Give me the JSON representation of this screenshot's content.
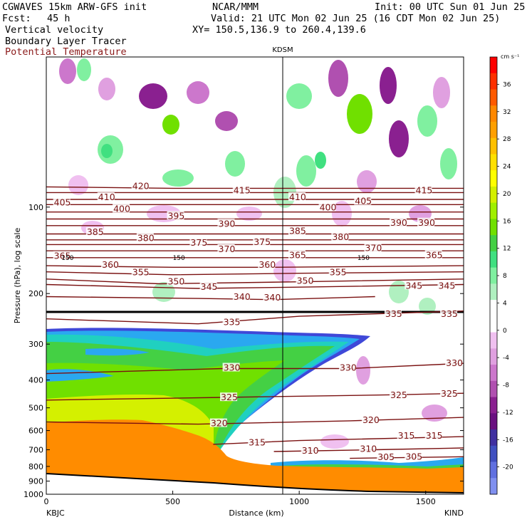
{
  "header": {
    "model": "CGWAVES 15km ARW-GFS init",
    "org": "NCAR/MMM",
    "init": "Init: 00 UTC Sun 01 Jun 25",
    "fcst_label": "Fcst:",
    "fcst_value": "45 h",
    "valid": "Valid: 21 UTC Mon 02 Jun 25 (16 CDT Mon 02 Jun 25)",
    "field1": "Vertical velocity",
    "field2": "Boundary Layer Tracer",
    "field3": "Potential Temperature",
    "xy": "XY= 150.5,136.9 to 260.4,139.6"
  },
  "colors": {
    "theta_contour": "#7a1010",
    "terrain": "#ff8c00",
    "cross_marker_line": "#000000"
  },
  "chart_data": {
    "type": "heatmap",
    "title": "KDSM",
    "xlabel": "Distance (km)",
    "ylabel": "Pressure (hPa), log scale",
    "xlim": [
      0,
      1650
    ],
    "ylim": [
      1000,
      30
    ],
    "yscale": "log",
    "x_ticks": [
      0,
      500,
      1000,
      1500
    ],
    "y_ticks": [
      100,
      200,
      300,
      400,
      500,
      600,
      700,
      800,
      900,
      1000
    ],
    "start_label": "KBJC",
    "end_label": "KIND",
    "marker_station": "KDSM",
    "marker_x": 940,
    "colorbar": {
      "unit": "cm s⁻¹",
      "ticks": [
        36,
        32,
        28,
        24,
        20,
        16,
        12,
        8,
        4,
        0,
        -4,
        -8,
        -12,
        -16,
        -20
      ],
      "colors": [
        "#ff0000",
        "#ff3000",
        "#ff5a00",
        "#ff8800",
        "#ff9f00",
        "#ffc000",
        "#ffe000",
        "#ffff00",
        "#d4f000",
        "#a0f000",
        "#70e000",
        "#44d044",
        "#40e080",
        "#80f0a0",
        "#b0f0c0",
        "#ffffff",
        "#ffffff",
        "#f0c0f0",
        "#e0a0e0",
        "#cc77cc",
        "#b050b0",
        "#8a2090",
        "#6a1080",
        "#4030a0",
        "#4050c0",
        "#6070e0",
        "#8090f0"
      ]
    },
    "theta_contours": [
      {
        "theta": 420,
        "points": [
          [
            0,
            85
          ],
          [
            500,
            86
          ],
          [
            1000,
            86
          ],
          [
            1650,
            86
          ]
        ],
        "labels": [
          [
            340,
            85
          ]
        ]
      },
      {
        "theta": 415,
        "points": [
          [
            0,
            89
          ],
          [
            500,
            89
          ],
          [
            1000,
            89
          ],
          [
            1650,
            89
          ]
        ],
        "labels": [
          [
            740,
            88
          ],
          [
            1460,
            88
          ]
        ]
      },
      {
        "theta": 410,
        "points": [
          [
            0,
            94
          ],
          [
            500,
            94
          ],
          [
            1000,
            94
          ],
          [
            1650,
            94
          ]
        ],
        "labels": [
          [
            205,
            93
          ],
          [
            960,
            93
          ]
        ]
      },
      {
        "theta": 405,
        "points": [
          [
            0,
            98
          ],
          [
            500,
            98
          ],
          [
            1000,
            98
          ],
          [
            1650,
            98
          ]
        ],
        "labels": [
          [
            30,
            97
          ],
          [
            1220,
            96
          ]
        ]
      },
      {
        "theta": 400,
        "points": [
          [
            0,
            104
          ],
          [
            500,
            104
          ],
          [
            1000,
            104
          ],
          [
            1650,
            104
          ]
        ],
        "labels": [
          [
            265,
            102
          ],
          [
            1080,
            101
          ]
        ]
      },
      {
        "theta": 395,
        "points": [
          [
            0,
            110
          ],
          [
            500,
            110
          ],
          [
            1000,
            110
          ],
          [
            1650,
            110
          ]
        ],
        "labels": [
          [
            480,
            108
          ]
        ]
      },
      {
        "theta": 390,
        "points": [
          [
            0,
            116
          ],
          [
            500,
            116
          ],
          [
            1000,
            116
          ],
          [
            1650,
            116
          ]
        ],
        "labels": [
          [
            680,
            115
          ],
          [
            1360,
            114
          ],
          [
            1470,
            114
          ]
        ]
      },
      {
        "theta": 385,
        "points": [
          [
            0,
            124
          ],
          [
            500,
            124
          ],
          [
            1000,
            124
          ],
          [
            1650,
            124
          ]
        ],
        "labels": [
          [
            160,
            123
          ],
          [
            960,
            122
          ]
        ]
      },
      {
        "theta": 380,
        "points": [
          [
            0,
            130
          ],
          [
            500,
            130
          ],
          [
            1000,
            130
          ],
          [
            1650,
            130
          ]
        ],
        "labels": [
          [
            360,
            129
          ],
          [
            1130,
            128
          ]
        ]
      },
      {
        "theta": 375,
        "points": [
          [
            0,
            135
          ],
          [
            500,
            135
          ],
          [
            1000,
            135
          ],
          [
            1650,
            135
          ]
        ],
        "labels": [
          [
            570,
            134
          ],
          [
            820,
            133
          ]
        ]
      },
      {
        "theta": 370,
        "points": [
          [
            0,
            142
          ],
          [
            500,
            142
          ],
          [
            1000,
            142
          ],
          [
            1650,
            142
          ]
        ],
        "labels": [
          [
            680,
            141
          ],
          [
            1260,
            140
          ]
        ]
      },
      {
        "theta": 365,
        "points": [
          [
            0,
            150
          ],
          [
            500,
            150
          ],
          [
            1000,
            150
          ],
          [
            1650,
            150
          ]
        ],
        "labels": [
          [
            30,
            149
          ],
          [
            960,
            148
          ],
          [
            1500,
            148
          ]
        ]
      },
      {
        "theta": 360,
        "points": [
          [
            0,
            160
          ],
          [
            500,
            162
          ],
          [
            900,
            162
          ],
          [
            1650,
            160
          ]
        ],
        "labels": [
          [
            220,
            160
          ],
          [
            840,
            160
          ]
        ]
      },
      {
        "theta": 355,
        "points": [
          [
            0,
            168
          ],
          [
            500,
            172
          ],
          [
            1000,
            170
          ],
          [
            1650,
            168
          ]
        ],
        "labels": [
          [
            340,
            170
          ],
          [
            1120,
            170
          ]
        ]
      },
      {
        "theta": 350,
        "points": [
          [
            0,
            178
          ],
          [
            450,
            185
          ],
          [
            1000,
            182
          ],
          [
            1650,
            178
          ]
        ],
        "labels": [
          [
            480,
            183
          ],
          [
            990,
            182
          ]
        ]
      },
      {
        "theta": 345,
        "points": [
          [
            0,
            186
          ],
          [
            400,
            190
          ],
          [
            600,
            192
          ],
          [
            1000,
            190
          ],
          [
            1650,
            186
          ]
        ],
        "labels": [
          [
            610,
            191
          ],
          [
            1420,
            189
          ],
          [
            1550,
            189
          ]
        ]
      },
      {
        "theta": 340,
        "points": [
          [
            0,
            205
          ],
          [
            600,
            208
          ],
          [
            900,
            210
          ],
          [
            1300,
            205
          ]
        ],
        "labels": [
          [
            740,
            207
          ],
          [
            860,
            208
          ]
        ]
      },
      {
        "theta": 335,
        "points": [
          [
            0,
            245
          ],
          [
            600,
            255
          ],
          [
            1000,
            240
          ],
          [
            1650,
            230
          ]
        ],
        "labels": [
          [
            700,
            253
          ],
          [
            1340,
            237
          ],
          [
            1560,
            237
          ]
        ]
      },
      {
        "theta": 330,
        "points": [
          [
            0,
            380
          ],
          [
            700,
            365
          ],
          [
            1200,
            365
          ],
          [
            1650,
            350
          ]
        ],
        "labels": [
          [
            700,
            365
          ],
          [
            1160,
            365
          ],
          [
            1580,
            352
          ]
        ]
      },
      {
        "theta": 325,
        "points": [
          [
            0,
            470
          ],
          [
            700,
            460
          ],
          [
            1400,
            450
          ],
          [
            1650,
            445
          ]
        ],
        "labels": [
          [
            690,
            463
          ],
          [
            1360,
            455
          ],
          [
            1560,
            450
          ]
        ]
      },
      {
        "theta": 320,
        "points": [
          [
            0,
            560
          ],
          [
            600,
            570
          ],
          [
            1200,
            555
          ],
          [
            1650,
            540
          ]
        ],
        "labels": [
          [
            650,
            570
          ],
          [
            1250,
            555
          ]
        ]
      },
      {
        "theta": 315,
        "points": [
          [
            660,
            670
          ],
          [
            1000,
            650
          ],
          [
            1650,
            630
          ]
        ],
        "labels": [
          [
            800,
            665
          ],
          [
            1390,
            630
          ],
          [
            1500,
            630
          ]
        ]
      },
      {
        "theta": 310,
        "points": [
          [
            900,
            710
          ],
          [
            1300,
            700
          ],
          [
            1650,
            690
          ]
        ],
        "labels": [
          [
            1010,
            710
          ],
          [
            1240,
            700
          ]
        ]
      },
      {
        "theta": 305,
        "points": [
          [
            1200,
            750
          ],
          [
            1650,
            740
          ]
        ],
        "labels": [
          [
            1310,
            748
          ],
          [
            1420,
            745
          ]
        ]
      }
    ],
    "bold_lines": [
      {
        "label": "150",
        "p": 150
      }
    ]
  }
}
